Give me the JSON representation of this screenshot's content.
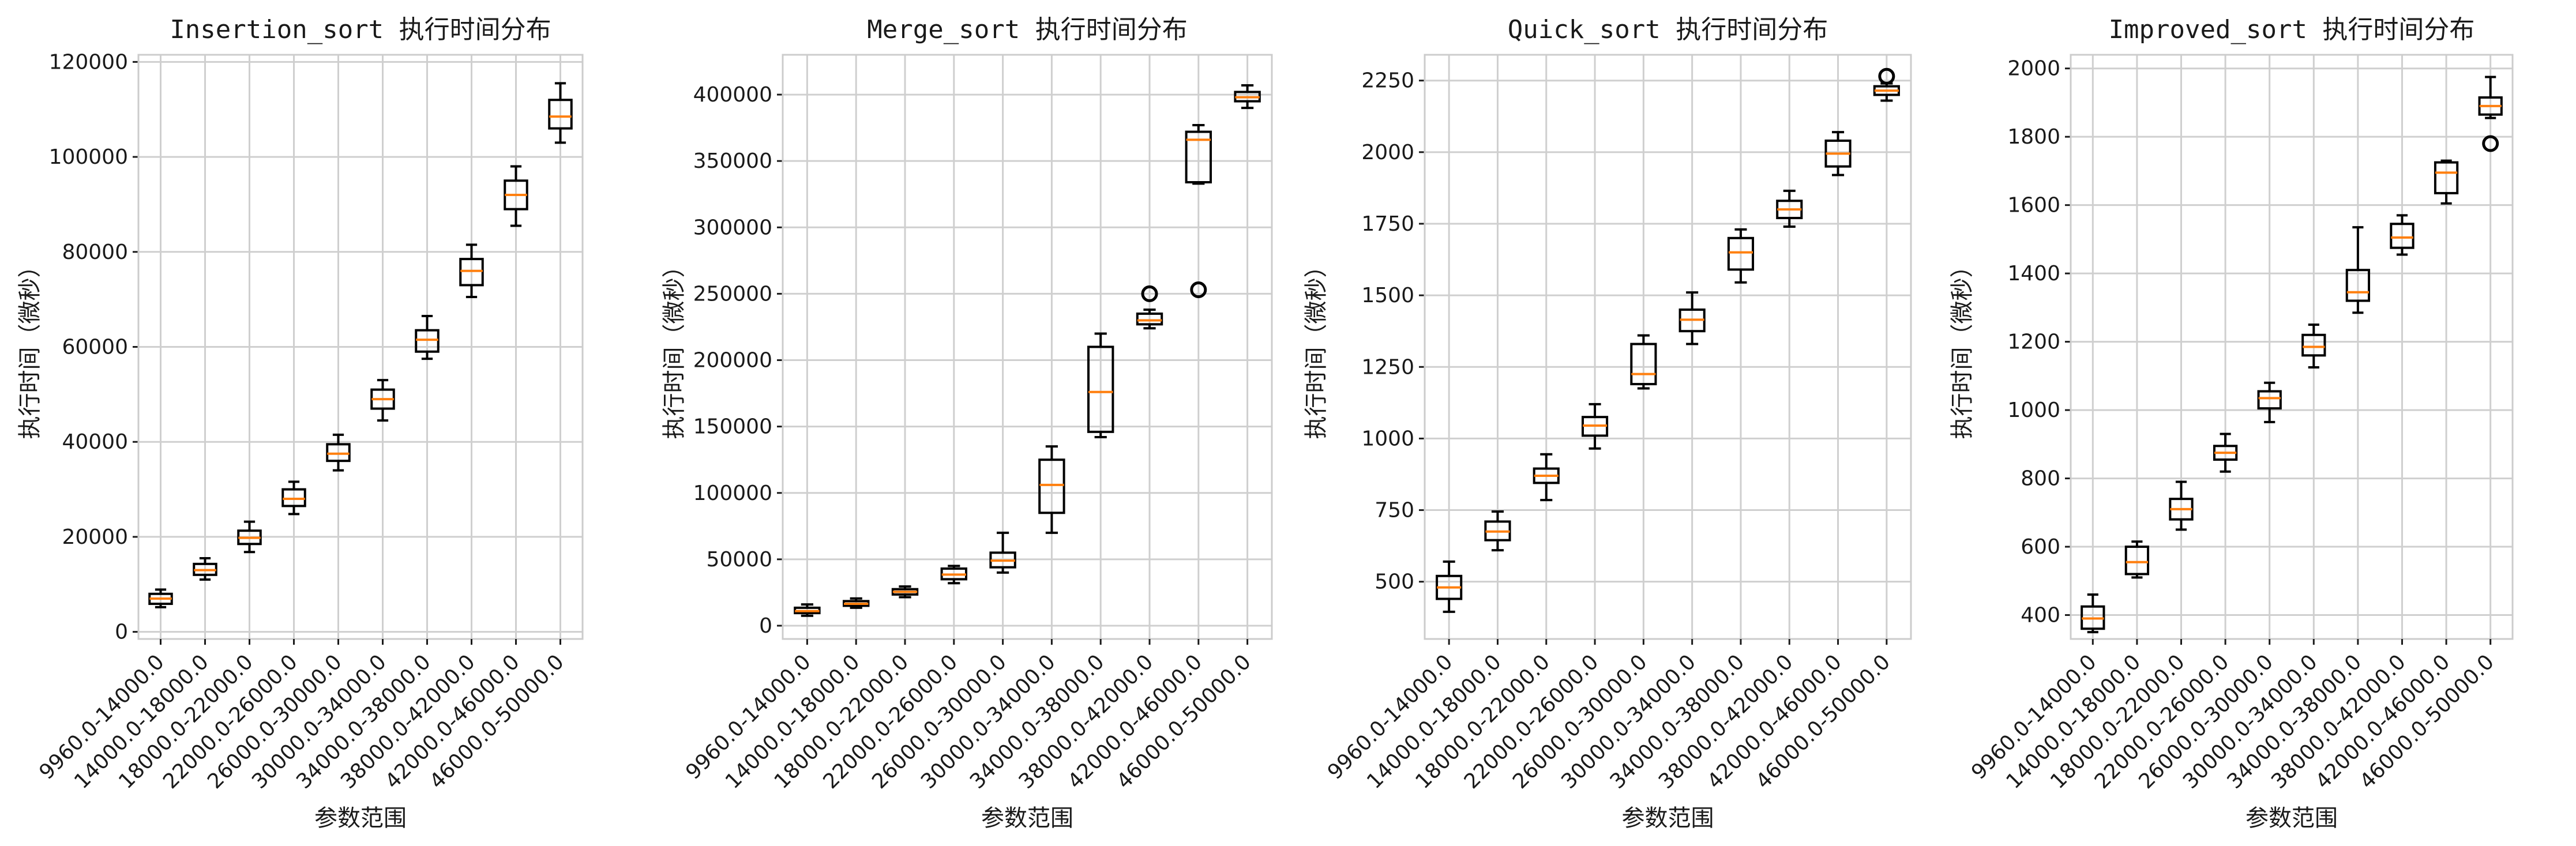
{
  "chart_data": [
    {
      "type": "box",
      "title": "Insertion_sort 执行时间分布",
      "xlabel": "参数范围",
      "ylabel": "执行时间（微秒）",
      "ylim": [
        -1500,
        121500
      ],
      "yticks": [
        0,
        20000,
        40000,
        60000,
        80000,
        100000,
        120000
      ],
      "grid": true,
      "categories": [
        "9960.0-14000.0",
        "14000.0-18000.0",
        "18000.0-22000.0",
        "22000.0-26000.0",
        "26000.0-30000.0",
        "30000.0-34000.0",
        "34000.0-38000.0",
        "38000.0-42000.0",
        "42000.0-46000.0",
        "46000.0-50000.0"
      ],
      "boxes": [
        {
          "whislo": 5200,
          "q1": 5900,
          "med": 7000,
          "q3": 8000,
          "whishi": 8900,
          "fliers": []
        },
        {
          "whislo": 11000,
          "q1": 12000,
          "med": 13000,
          "q3": 14300,
          "whishi": 15500,
          "fliers": []
        },
        {
          "whislo": 16800,
          "q1": 18500,
          "med": 19800,
          "q3": 21300,
          "whishi": 23200,
          "fliers": []
        },
        {
          "whislo": 24800,
          "q1": 26500,
          "med": 28000,
          "q3": 30000,
          "whishi": 31600,
          "fliers": []
        },
        {
          "whislo": 34000,
          "q1": 36000,
          "med": 37500,
          "q3": 39500,
          "whishi": 41500,
          "fliers": []
        },
        {
          "whislo": 44500,
          "q1": 47000,
          "med": 49000,
          "q3": 51000,
          "whishi": 53000,
          "fliers": []
        },
        {
          "whislo": 57500,
          "q1": 59000,
          "med": 61500,
          "q3": 63500,
          "whishi": 66500,
          "fliers": []
        },
        {
          "whislo": 70500,
          "q1": 73000,
          "med": 76000,
          "q3": 78500,
          "whishi": 81500,
          "fliers": []
        },
        {
          "whislo": 85500,
          "q1": 89000,
          "med": 92000,
          "q3": 95000,
          "whishi": 98000,
          "fliers": []
        },
        {
          "whislo": 103000,
          "q1": 106000,
          "med": 108500,
          "q3": 112000,
          "whishi": 115500,
          "fliers": []
        }
      ]
    },
    {
      "type": "box",
      "title": "Merge_sort 执行时间分布",
      "xlabel": "参数范围",
      "ylabel": "执行时间（微秒）",
      "ylim": [
        -10000,
        430000
      ],
      "yticks": [
        0,
        50000,
        100000,
        150000,
        200000,
        250000,
        300000,
        350000,
        400000
      ],
      "grid": true,
      "categories": [
        "9960.0-14000.0",
        "14000.0-18000.0",
        "18000.0-22000.0",
        "22000.0-26000.0",
        "26000.0-30000.0",
        "30000.0-34000.0",
        "34000.0-38000.0",
        "38000.0-42000.0",
        "42000.0-46000.0",
        "46000.0-50000.0"
      ],
      "boxes": [
        {
          "whislo": 7500,
          "q1": 9500,
          "med": 11000,
          "q3": 13500,
          "whishi": 16000,
          "fliers": []
        },
        {
          "whislo": 13500,
          "q1": 15000,
          "med": 16500,
          "q3": 18500,
          "whishi": 20500,
          "fliers": []
        },
        {
          "whislo": 21500,
          "q1": 23500,
          "med": 25500,
          "q3": 27500,
          "whishi": 29500,
          "fliers": []
        },
        {
          "whislo": 32000,
          "q1": 35000,
          "med": 38500,
          "q3": 43000,
          "whishi": 45000,
          "fliers": []
        },
        {
          "whislo": 40000,
          "q1": 44000,
          "med": 49000,
          "q3": 55000,
          "whishi": 70000,
          "fliers": []
        },
        {
          "whislo": 70000,
          "q1": 85000,
          "med": 106000,
          "q3": 125000,
          "whishi": 135000,
          "fliers": []
        },
        {
          "whislo": 142000,
          "q1": 146000,
          "med": 176000,
          "q3": 210000,
          "whishi": 220000,
          "fliers": []
        },
        {
          "whislo": 224000,
          "q1": 227000,
          "med": 230000,
          "q3": 235000,
          "whishi": 238000,
          "fliers": [
            250000
          ]
        },
        {
          "whislo": 333000,
          "q1": 334000,
          "med": 366000,
          "q3": 372000,
          "whishi": 377000,
          "fliers": [
            253000
          ]
        },
        {
          "whislo": 390000,
          "q1": 395000,
          "med": 398000,
          "q3": 402000,
          "whishi": 407000,
          "fliers": []
        }
      ]
    },
    {
      "type": "box",
      "title": "Quick_sort 执行时间分布",
      "xlabel": "参数范围",
      "ylabel": "执行时间（微秒）",
      "ylim": [
        300,
        2340
      ],
      "yticks": [
        500,
        750,
        1000,
        1250,
        1500,
        1750,
        2000,
        2250
      ],
      "grid": true,
      "categories": [
        "9960.0-14000.0",
        "14000.0-18000.0",
        "18000.0-22000.0",
        "22000.0-26000.0",
        "26000.0-30000.0",
        "30000.0-34000.0",
        "34000.0-38000.0",
        "38000.0-42000.0",
        "42000.0-46000.0",
        "46000.0-50000.0"
      ],
      "boxes": [
        {
          "whislo": 395,
          "q1": 440,
          "med": 480,
          "q3": 520,
          "whishi": 570,
          "fliers": []
        },
        {
          "whislo": 610,
          "q1": 645,
          "med": 675,
          "q3": 710,
          "whishi": 745,
          "fliers": []
        },
        {
          "whislo": 785,
          "q1": 845,
          "med": 870,
          "q3": 895,
          "whishi": 945,
          "fliers": []
        },
        {
          "whislo": 965,
          "q1": 1010,
          "med": 1045,
          "q3": 1075,
          "whishi": 1120,
          "fliers": []
        },
        {
          "whislo": 1175,
          "q1": 1190,
          "med": 1225,
          "q3": 1330,
          "whishi": 1360,
          "fliers": []
        },
        {
          "whislo": 1330,
          "q1": 1375,
          "med": 1415,
          "q3": 1450,
          "whishi": 1510,
          "fliers": []
        },
        {
          "whislo": 1545,
          "q1": 1590,
          "med": 1650,
          "q3": 1700,
          "whishi": 1730,
          "fliers": []
        },
        {
          "whislo": 1740,
          "q1": 1770,
          "med": 1800,
          "q3": 1830,
          "whishi": 1865,
          "fliers": []
        },
        {
          "whislo": 1920,
          "q1": 1950,
          "med": 1995,
          "q3": 2040,
          "whishi": 2070,
          "fliers": []
        },
        {
          "whislo": 2180,
          "q1": 2200,
          "med": 2215,
          "q3": 2230,
          "whishi": 2240,
          "fliers": [
            2265
          ]
        }
      ]
    },
    {
      "type": "box",
      "title": "Improved_sort 执行时间分布",
      "xlabel": "参数范围",
      "ylabel": "执行时间（微秒）",
      "ylim": [
        330,
        2040
      ],
      "yticks": [
        400,
        600,
        800,
        1000,
        1200,
        1400,
        1600,
        1800,
        2000
      ],
      "grid": true,
      "categories": [
        "9960.0-14000.0",
        "14000.0-18000.0",
        "18000.0-22000.0",
        "22000.0-26000.0",
        "26000.0-30000.0",
        "30000.0-34000.0",
        "34000.0-38000.0",
        "38000.0-42000.0",
        "42000.0-46000.0",
        "46000.0-50000.0"
      ],
      "boxes": [
        {
          "whislo": 350,
          "q1": 360,
          "med": 390,
          "q3": 425,
          "whishi": 460,
          "fliers": []
        },
        {
          "whislo": 510,
          "q1": 520,
          "med": 555,
          "q3": 600,
          "whishi": 615,
          "fliers": []
        },
        {
          "whislo": 650,
          "q1": 680,
          "med": 710,
          "q3": 740,
          "whishi": 790,
          "fliers": []
        },
        {
          "whislo": 820,
          "q1": 855,
          "med": 875,
          "q3": 895,
          "whishi": 930,
          "fliers": []
        },
        {
          "whislo": 965,
          "q1": 1005,
          "med": 1035,
          "q3": 1055,
          "whishi": 1080,
          "fliers": []
        },
        {
          "whislo": 1125,
          "q1": 1160,
          "med": 1185,
          "q3": 1220,
          "whishi": 1250,
          "fliers": []
        },
        {
          "whislo": 1285,
          "q1": 1320,
          "med": 1345,
          "q3": 1410,
          "whishi": 1535,
          "fliers": []
        },
        {
          "whislo": 1455,
          "q1": 1475,
          "med": 1505,
          "q3": 1545,
          "whishi": 1570,
          "fliers": []
        },
        {
          "whislo": 1605,
          "q1": 1635,
          "med": 1695,
          "q3": 1725,
          "whishi": 1730,
          "fliers": []
        },
        {
          "whislo": 1855,
          "q1": 1865,
          "med": 1890,
          "q3": 1915,
          "whishi": 1975,
          "fliers": [
            1780
          ]
        }
      ]
    }
  ]
}
